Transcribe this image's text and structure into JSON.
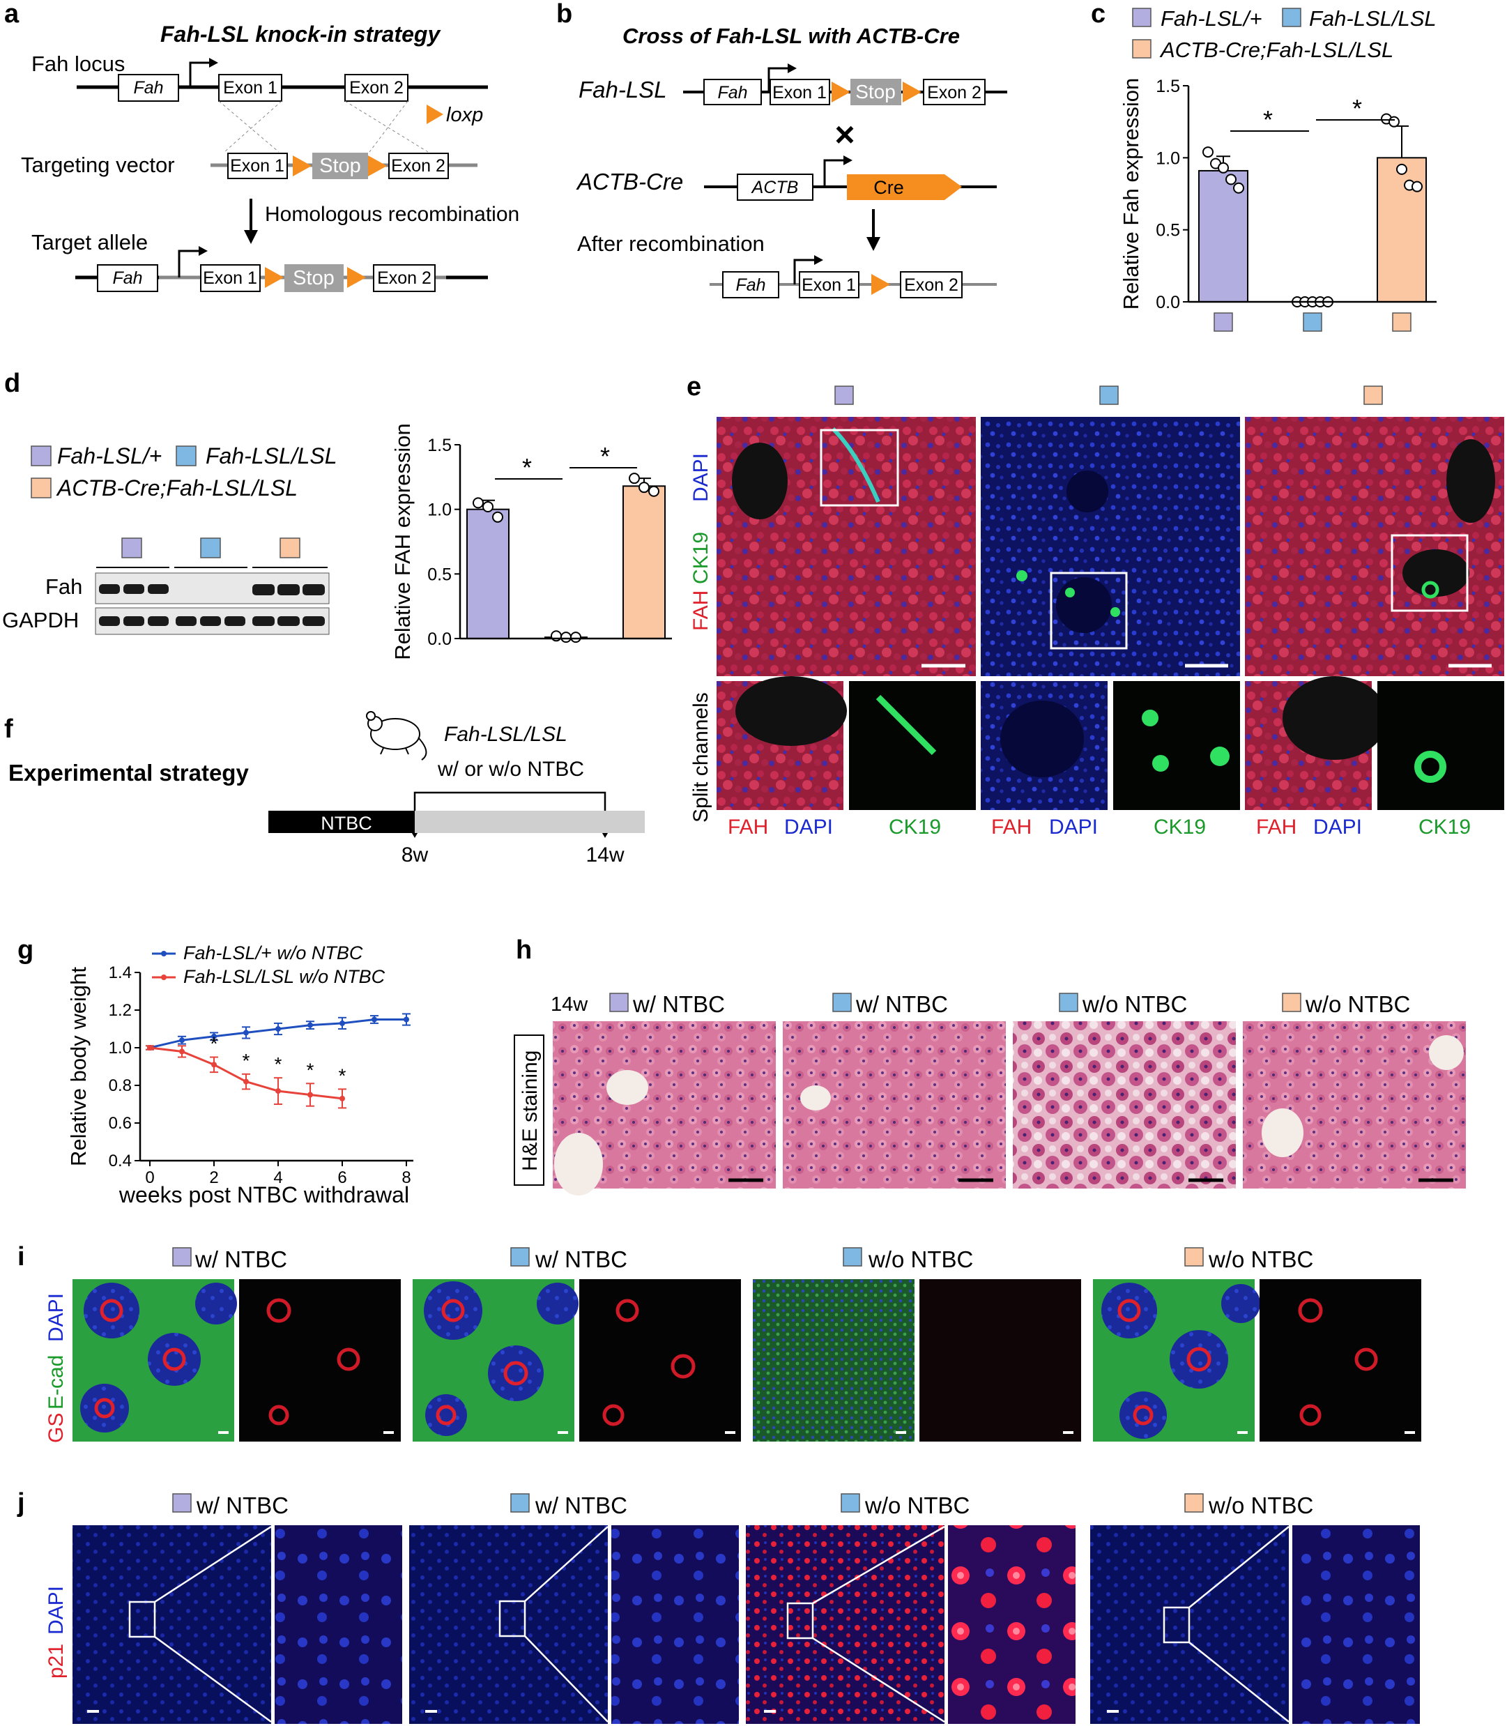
{
  "panels": {
    "a": "a",
    "b": "b",
    "c": "c",
    "d": "d",
    "e": "e",
    "f": "f",
    "g": "g",
    "h": "h",
    "i": "i",
    "j": "j"
  },
  "genotypes": {
    "het": "Fah-LSL/+",
    "hom": "Fah-LSL/LSL",
    "cre": "ACTB-Cre;Fah-LSL/LSL"
  },
  "colors": {
    "het": "#b3aee0",
    "hom": "#7fb8e3",
    "cre": "#fbc6a2",
    "loxp": "#f58d1f",
    "stop": "#a0a0a0",
    "cre_box": "#f58d1f",
    "line_blue": "#1f4fbf",
    "line_red": "#e8433a"
  },
  "panel_a": {
    "title": "Fah-LSL knock-in strategy",
    "locus_label": "Fah locus",
    "targeting_label": "Targeting vector",
    "target_label": "Target allele",
    "recombination": "Homologous recombination",
    "loxp": "loxp",
    "fah": "Fah",
    "exon1": "Exon 1",
    "exon2": "Exon 2",
    "stop": "Stop"
  },
  "panel_b": {
    "title": "Cross of Fah-LSL with ACTB-Cre",
    "fah_lsl": "Fah-LSL",
    "actb_cre": "ACTB-Cre",
    "actb": "ACTB",
    "cre": "Cre",
    "times": "×",
    "after": "After recombination",
    "fah": "Fah",
    "exon1": "Exon 1",
    "exon2": "Exon 2",
    "stop": "Stop"
  },
  "chart_data": [
    {
      "panel": "c",
      "type": "bar",
      "categories": [
        "Fah-LSL/+",
        "Fah-LSL/LSL",
        "ACTB-Cre;Fah-LSL/LSL"
      ],
      "values": [
        0.91,
        0.0,
        1.0
      ],
      "errors": [
        0.1,
        0.0,
        0.22
      ],
      "points": [
        [
          1.04,
          0.96,
          0.93,
          0.85,
          0.79
        ],
        [
          0,
          0,
          0,
          0,
          0
        ],
        [
          1.27,
          1.25,
          0.92,
          0.81,
          0.8
        ]
      ],
      "ylabel": "Relative Fah expression",
      "ylim": [
        0,
        1.5
      ],
      "yticks": [
        "0.0",
        "0.5",
        "1.0",
        "1.5"
      ],
      "significance": [
        "*",
        "*"
      ]
    },
    {
      "panel": "d",
      "type": "bar",
      "categories": [
        "Fah-LSL/+",
        "Fah-LSL/LSL",
        "ACTB-Cre;Fah-LSL/LSL"
      ],
      "values": [
        1.0,
        0.01,
        1.18
      ],
      "errors": [
        0.07,
        0.01,
        0.06
      ],
      "points": [
        [
          1.05,
          1.02,
          0.94
        ],
        [
          0.02,
          0.01,
          0.01
        ],
        [
          1.24,
          1.17,
          1.14
        ]
      ],
      "ylabel": "Relative FAH expression",
      "ylim": [
        0,
        1.5
      ],
      "yticks": [
        "0.0",
        "0.5",
        "1.0",
        "1.5"
      ],
      "significance": [
        "*",
        "*"
      ]
    },
    {
      "panel": "g",
      "type": "line",
      "xlabel": "weeks post NTBC withdrawal",
      "ylabel": "Relative body weight",
      "xticks": [
        "0",
        "2",
        "4",
        "6",
        "8"
      ],
      "yticks": [
        "0.4",
        "0.6",
        "0.8",
        "1.0",
        "1.2",
        "1.4"
      ],
      "xlim": [
        0,
        8
      ],
      "ylim": [
        0.4,
        1.4
      ],
      "series": [
        {
          "name": "Fah-LSL/+  w/o NTBC",
          "x": [
            0,
            1,
            2,
            3,
            4,
            5,
            6,
            7,
            8
          ],
          "y": [
            1.0,
            1.04,
            1.06,
            1.08,
            1.1,
            1.12,
            1.13,
            1.15,
            1.15
          ],
          "err": [
            0.01,
            0.02,
            0.02,
            0.03,
            0.03,
            0.02,
            0.03,
            0.02,
            0.03
          ]
        },
        {
          "name": "Fah-LSL/LSL w/o NTBC",
          "x": [
            0,
            1,
            2,
            3,
            4,
            5,
            6
          ],
          "y": [
            1.0,
            0.98,
            0.91,
            0.82,
            0.77,
            0.75,
            0.73
          ],
          "err": [
            0.01,
            0.03,
            0.04,
            0.04,
            0.07,
            0.06,
            0.05
          ]
        }
      ],
      "significance": "*"
    }
  ],
  "panel_d": {
    "fah": "Fah",
    "gapdh": "GAPDH"
  },
  "panel_e": {
    "stain_fah": "FAH",
    "stain_ck19": "CK19",
    "stain_dapi": "DAPI",
    "split": "Split channels"
  },
  "panel_f": {
    "title": "Experimental strategy",
    "mouse_label": "Fah-LSL/LSL",
    "treatment": "w/ or w/o NTBC",
    "ntbc": "NTBC",
    "t1": "8w",
    "t2": "14w"
  },
  "panel_h": {
    "age": "14w",
    "side": "H&E staining",
    "conds": [
      "w/ NTBC",
      "w/ NTBC",
      "w/o NTBC",
      "w/o NTBC"
    ]
  },
  "panel_i": {
    "gs": "GS",
    "ecad": "E-cad",
    "dapi": "DAPI",
    "conds": [
      "w/ NTBC",
      "w/ NTBC",
      "w/o NTBC",
      "w/o NTBC"
    ]
  },
  "panel_j": {
    "p21": "p21",
    "dapi": "DAPI",
    "conds": [
      "w/ NTBC",
      "w/ NTBC",
      "w/o NTBC",
      "w/o NTBC"
    ]
  }
}
